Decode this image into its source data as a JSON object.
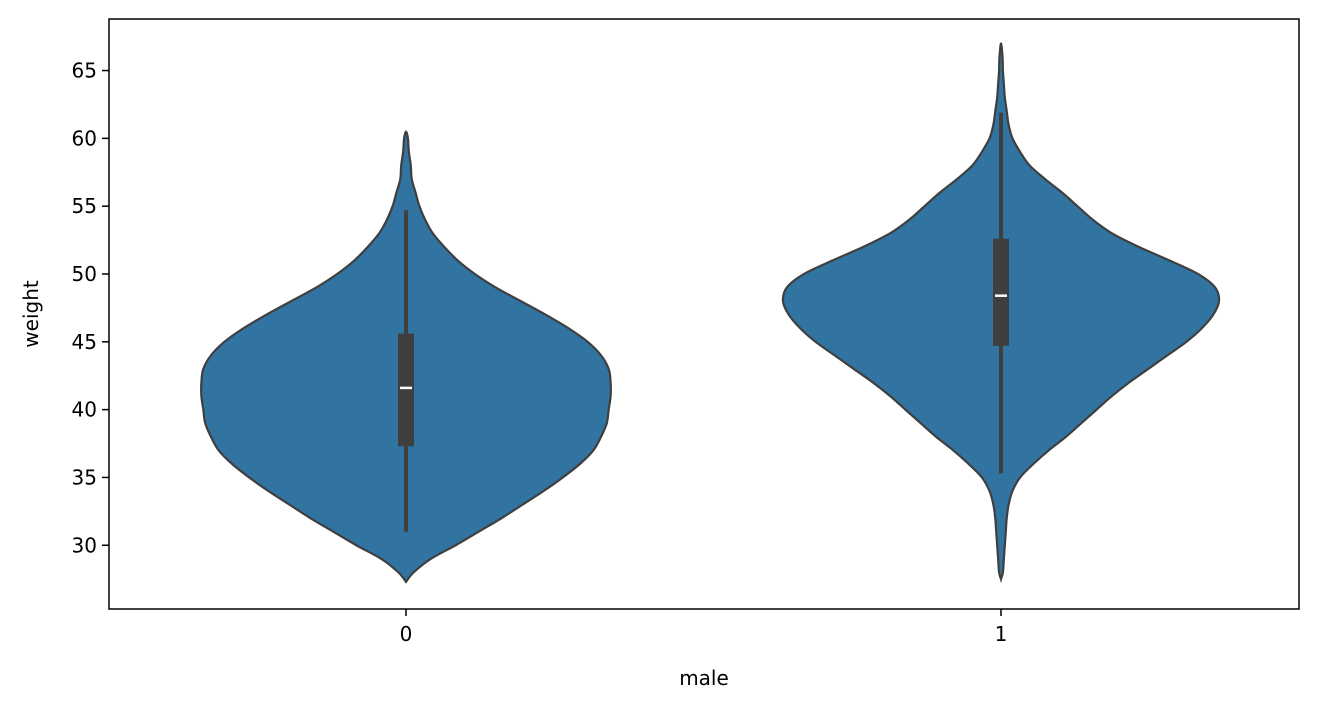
{
  "chart_data": {
    "type": "violin",
    "title": "",
    "xlabel": "male",
    "ylabel": "weight",
    "categories": [
      "0",
      "1"
    ],
    "ylim": [
      25.3,
      68.8
    ],
    "yticks": [
      30,
      35,
      40,
      45,
      50,
      55,
      60,
      65
    ],
    "grid": false,
    "fill_color": "#3274a1",
    "edge_color": "#3f3f3f",
    "box_color": "#3f3f3f",
    "median_color": "#ffffff",
    "violins": [
      {
        "category": "0",
        "density_min": 27.3,
        "density_max": 60.5,
        "whisker_low": 31.0,
        "q1": 37.3,
        "median": 41.6,
        "q3": 45.6,
        "whisker_high": 54.7,
        "profile": [
          [
            27.3,
            0.0
          ],
          [
            28.0,
            0.04
          ],
          [
            29.0,
            0.13
          ],
          [
            30.0,
            0.26
          ],
          [
            31.0,
            0.38
          ],
          [
            32.0,
            0.5
          ],
          [
            33.0,
            0.61
          ],
          [
            34.0,
            0.72
          ],
          [
            35.0,
            0.82
          ],
          [
            36.0,
            0.91
          ],
          [
            37.0,
            0.98
          ],
          [
            38.0,
            1.02
          ],
          [
            39.0,
            1.05
          ],
          [
            40.0,
            1.06
          ],
          [
            41.0,
            1.07
          ],
          [
            42.0,
            1.07
          ],
          [
            43.0,
            1.06
          ],
          [
            44.0,
            1.02
          ],
          [
            45.0,
            0.95
          ],
          [
            46.0,
            0.85
          ],
          [
            47.0,
            0.73
          ],
          [
            48.0,
            0.6
          ],
          [
            49.0,
            0.47
          ],
          [
            50.0,
            0.36
          ],
          [
            51.0,
            0.27
          ],
          [
            52.0,
            0.2
          ],
          [
            53.0,
            0.14
          ],
          [
            54.0,
            0.1
          ],
          [
            55.0,
            0.07
          ],
          [
            56.0,
            0.05
          ],
          [
            57.0,
            0.03
          ],
          [
            58.0,
            0.025
          ],
          [
            59.0,
            0.015
          ],
          [
            60.0,
            0.01
          ],
          [
            60.5,
            0.0
          ]
        ]
      },
      {
        "category": "1",
        "density_min": 27.5,
        "density_max": 67.0,
        "whisker_low": 35.3,
        "q1": 44.7,
        "median": 48.4,
        "q3": 52.6,
        "whisker_high": 61.9,
        "profile": [
          [
            27.5,
            0.0
          ],
          [
            28.0,
            0.01
          ],
          [
            29.0,
            0.015
          ],
          [
            30.0,
            0.02
          ],
          [
            31.0,
            0.025
          ],
          [
            32.0,
            0.03
          ],
          [
            33.0,
            0.04
          ],
          [
            34.0,
            0.06
          ],
          [
            35.0,
            0.1
          ],
          [
            36.0,
            0.17
          ],
          [
            37.0,
            0.25
          ],
          [
            38.0,
            0.34
          ],
          [
            39.0,
            0.42
          ],
          [
            40.0,
            0.5
          ],
          [
            41.0,
            0.58
          ],
          [
            42.0,
            0.67
          ],
          [
            43.0,
            0.77
          ],
          [
            44.0,
            0.87
          ],
          [
            45.0,
            0.97
          ],
          [
            46.0,
            1.05
          ],
          [
            47.0,
            1.11
          ],
          [
            48.0,
            1.14
          ],
          [
            49.0,
            1.12
          ],
          [
            50.0,
            1.03
          ],
          [
            51.0,
            0.88
          ],
          [
            52.0,
            0.72
          ],
          [
            53.0,
            0.58
          ],
          [
            54.0,
            0.48
          ],
          [
            55.0,
            0.4
          ],
          [
            56.0,
            0.32
          ],
          [
            57.0,
            0.23
          ],
          [
            58.0,
            0.15
          ],
          [
            59.0,
            0.1
          ],
          [
            60.0,
            0.06
          ],
          [
            61.0,
            0.04
          ],
          [
            62.0,
            0.03
          ],
          [
            63.0,
            0.02
          ],
          [
            64.0,
            0.015
          ],
          [
            65.0,
            0.01
          ],
          [
            66.0,
            0.008
          ],
          [
            67.0,
            0.0
          ]
        ]
      }
    ]
  }
}
